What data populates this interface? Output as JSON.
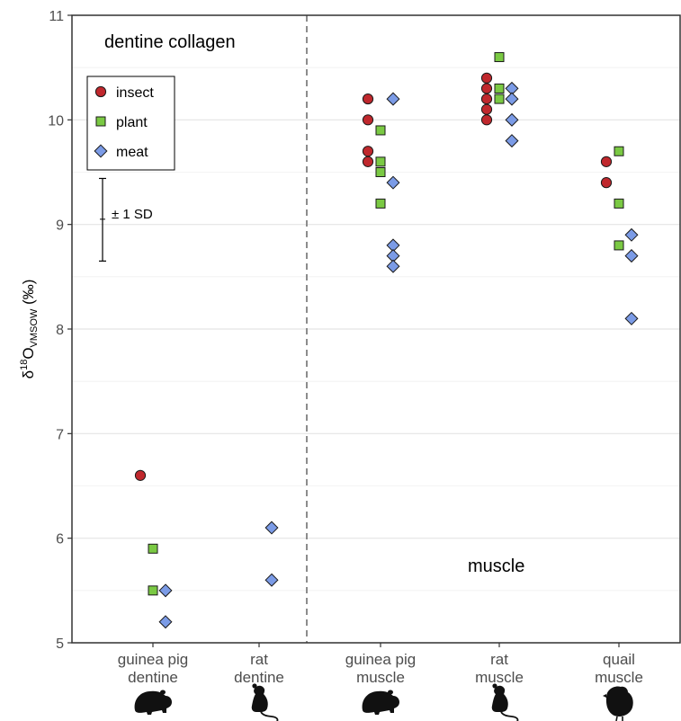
{
  "chart_data": {
    "type": "scatter",
    "ylabel": {
      "prefix": "δ",
      "sup": "18",
      "main": "O",
      "sub": "VMSOW",
      "suffix": " (‰)"
    },
    "ylim": [
      5,
      11
    ],
    "yticks": [
      5,
      6,
      7,
      8,
      9,
      10,
      11
    ],
    "grid": true,
    "categories": [
      {
        "line1": "guinea pig",
        "line2": "dentine",
        "icon": "guinea-pig-icon"
      },
      {
        "line1": "rat",
        "line2": "dentine",
        "icon": "rat-icon"
      },
      {
        "line1": "guinea pig",
        "line2": "muscle",
        "icon": "guinea-pig-icon"
      },
      {
        "line1": "rat",
        "line2": "muscle",
        "icon": "rat-icon"
      },
      {
        "line1": "quail",
        "line2": "muscle",
        "icon": "quail-icon"
      }
    ],
    "panel_labels": {
      "left": "dentine collagen",
      "right": "muscle"
    },
    "legend": {
      "position": "top-left",
      "entries": [
        {
          "label": "insect",
          "shape": "circle",
          "color": "#c0282d"
        },
        {
          "label": "plant",
          "shape": "square",
          "color": "#7ac943"
        },
        {
          "label": "meat",
          "shape": "diamond",
          "color": "#7b9be6"
        }
      ]
    },
    "error_bar": {
      "label": "± 1 SD",
      "center": 9.05,
      "low": 8.65,
      "high": 9.44
    },
    "series": [
      {
        "name": "insect",
        "points": [
          {
            "cat": 0,
            "y": 6.6
          },
          {
            "cat": 2,
            "y": 10.2
          },
          {
            "cat": 2,
            "y": 10.0
          },
          {
            "cat": 2,
            "y": 9.7
          },
          {
            "cat": 2,
            "y": 9.6
          },
          {
            "cat": 3,
            "y": 10.4
          },
          {
            "cat": 3,
            "y": 10.3
          },
          {
            "cat": 3,
            "y": 10.2
          },
          {
            "cat": 3,
            "y": 10.1
          },
          {
            "cat": 3,
            "y": 10.0
          },
          {
            "cat": 4,
            "y": 9.6
          },
          {
            "cat": 4,
            "y": 9.4
          }
        ]
      },
      {
        "name": "plant",
        "points": [
          {
            "cat": 0,
            "y": 5.9
          },
          {
            "cat": 0,
            "y": 5.5
          },
          {
            "cat": 2,
            "y": 9.9
          },
          {
            "cat": 2,
            "y": 9.6
          },
          {
            "cat": 2,
            "y": 9.5
          },
          {
            "cat": 2,
            "y": 9.2
          },
          {
            "cat": 3,
            "y": 10.6
          },
          {
            "cat": 3,
            "y": 10.3
          },
          {
            "cat": 3,
            "y": 10.2
          },
          {
            "cat": 4,
            "y": 9.7
          },
          {
            "cat": 4,
            "y": 9.2
          },
          {
            "cat": 4,
            "y": 8.8
          }
        ]
      },
      {
        "name": "meat",
        "points": [
          {
            "cat": 0,
            "y": 5.5
          },
          {
            "cat": 0,
            "y": 5.2
          },
          {
            "cat": 1,
            "y": 6.1
          },
          {
            "cat": 1,
            "y": 5.6
          },
          {
            "cat": 2,
            "y": 10.2
          },
          {
            "cat": 2,
            "y": 9.4
          },
          {
            "cat": 2,
            "y": 8.8
          },
          {
            "cat": 2,
            "y": 8.7
          },
          {
            "cat": 2,
            "y": 8.6
          },
          {
            "cat": 3,
            "y": 10.3
          },
          {
            "cat": 3,
            "y": 10.2
          },
          {
            "cat": 3,
            "y": 10.0
          },
          {
            "cat": 3,
            "y": 9.8
          },
          {
            "cat": 4,
            "y": 8.9
          },
          {
            "cat": 4,
            "y": 8.7
          },
          {
            "cat": 4,
            "y": 8.1
          }
        ]
      }
    ]
  }
}
